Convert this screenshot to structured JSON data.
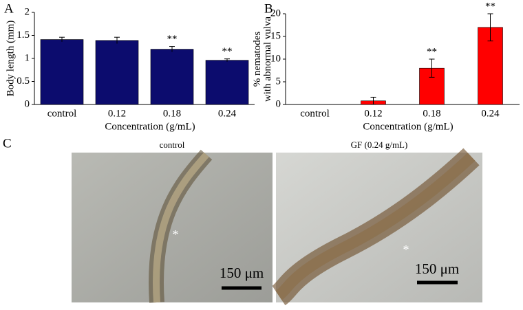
{
  "panel_labels": [
    "A",
    "B",
    "C"
  ],
  "chart_data": [
    {
      "type": "bar",
      "ylabel": [
        "Body length (mm)"
      ],
      "xlabel": "Concentration (g/mL)",
      "categories": [
        "control",
        "0.12",
        "0.18",
        "0.24"
      ],
      "values": [
        1.41,
        1.39,
        1.2,
        0.96
      ],
      "errors": [
        0.05,
        0.07,
        0.06,
        0.03
      ],
      "significance": [
        null,
        null,
        "**",
        "**"
      ],
      "color": "#0c0c6e",
      "ylim": [
        0,
        2
      ],
      "yticks": [
        0,
        0.5,
        1,
        1.5,
        2
      ]
    },
    {
      "type": "bar",
      "ylabel": [
        "% nematodes",
        "with abnormal vulva"
      ],
      "xlabel": "Concentration (g/mL)",
      "categories": [
        "control",
        "0.12",
        "0.18",
        "0.24"
      ],
      "values": [
        0,
        0.8,
        8,
        17
      ],
      "errors": [
        0,
        0.8,
        2,
        3
      ],
      "significance": [
        null,
        null,
        "**",
        "**"
      ],
      "color": "#ff0000",
      "ylim": [
        0,
        20
      ],
      "yticks": [
        0,
        5,
        10,
        15,
        20
      ]
    }
  ],
  "micrographs": [
    {
      "title": "control",
      "scale_bar": "150 μm",
      "marker": "*"
    },
    {
      "title": "GF (0.24 g/mL)",
      "scale_bar": "150 μm",
      "marker": "*"
    }
  ]
}
